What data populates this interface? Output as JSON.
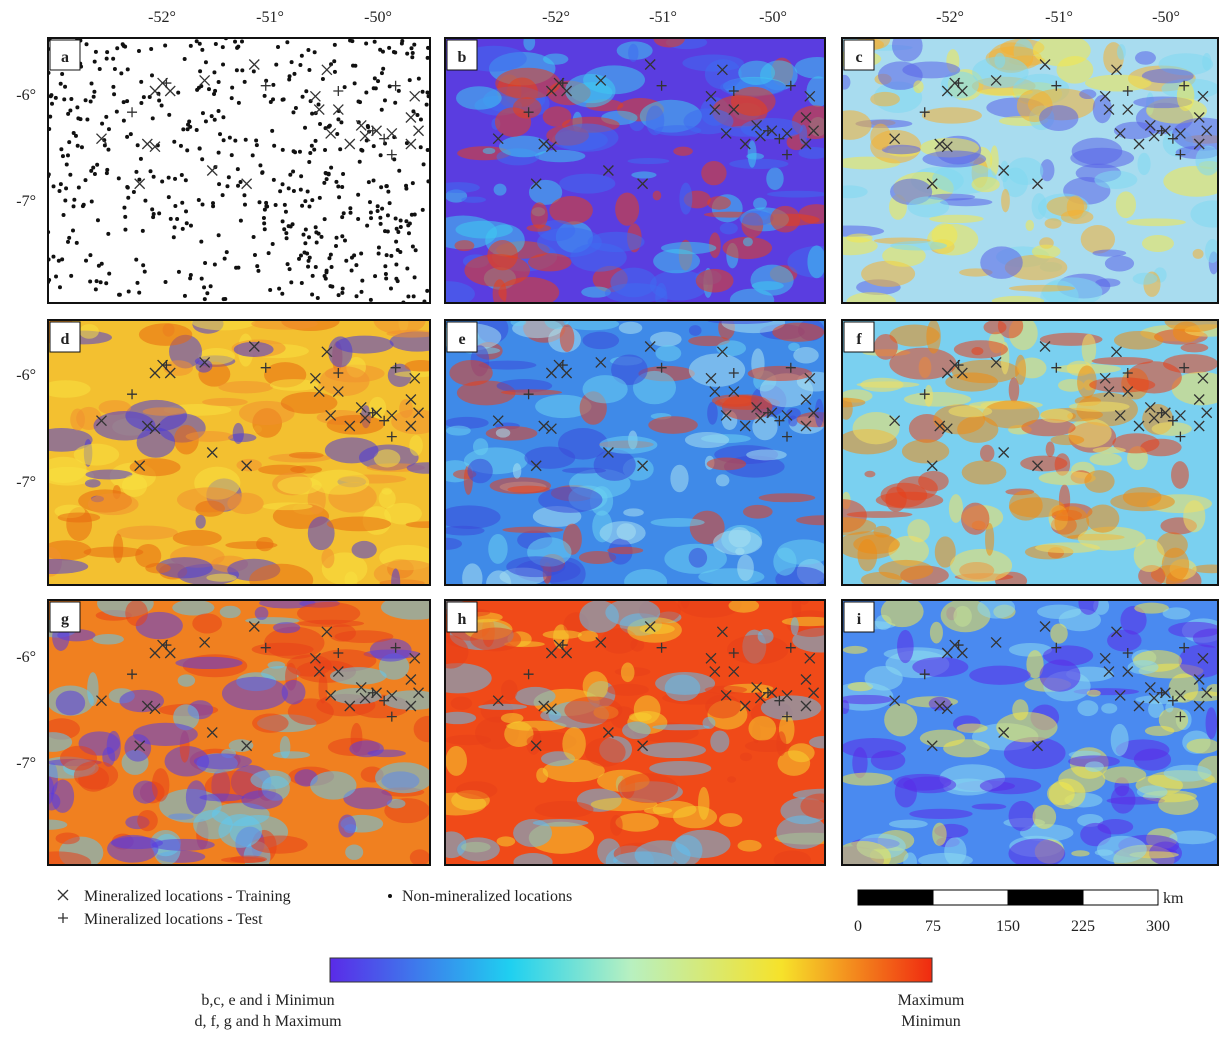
{
  "longitude_labels": [
    "-52°",
    "-51°",
    "-50°"
  ],
  "latitude_labels": [
    "-6°",
    "-7°"
  ],
  "panels": [
    "a",
    "b",
    "c",
    "d",
    "e",
    "f",
    "g",
    "h",
    "i"
  ],
  "legend": {
    "training": "Mineralized locations - Training",
    "test": "Mineralized locations - Test",
    "non_mineralized": "Non-mineralized locations"
  },
  "scale_bar": {
    "labels": [
      "0",
      "75",
      "150",
      "225",
      "300"
    ],
    "unit": "km"
  },
  "colorbar": {
    "left_top": "b,c, e and i Minimun",
    "left_bottom": "d, f, g and h Maximum",
    "right_top": "Maximum",
    "right_bottom": "Minimun"
  }
}
